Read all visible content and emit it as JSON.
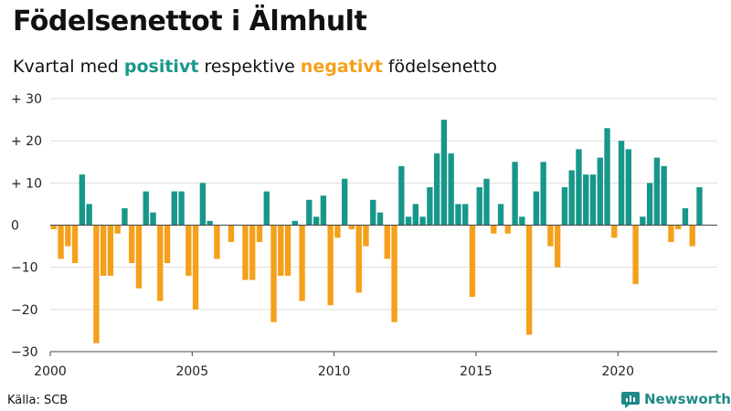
{
  "title": "Födelsenettot i Älmhult",
  "subtitle": {
    "prefix": "Kvartal med ",
    "positive": "positivt",
    "middle": " respektive ",
    "negative": "negativt",
    "suffix": " födelsenetto"
  },
  "source": "Källa: SCB",
  "logo": {
    "text": "Newsworthy",
    "icon": "bar-chart-icon"
  },
  "colors": {
    "positive": "#17978a",
    "negative": "#f5a01a",
    "grid": "#dddddd"
  },
  "chart_data": {
    "type": "bar",
    "xlabel": "",
    "ylabel": "",
    "ylim": [
      -30,
      30
    ],
    "xlim": [
      2000,
      2023.5
    ],
    "yticks": [
      {
        "value": 30,
        "label": "+ 30"
      },
      {
        "value": 20,
        "label": "+ 20"
      },
      {
        "value": 10,
        "label": "+ 10"
      },
      {
        "value": 0,
        "label": "0"
      },
      {
        "value": -10,
        "label": "−10"
      },
      {
        "value": -20,
        "label": "−20"
      },
      {
        "value": -30,
        "label": "−30"
      }
    ],
    "xticks": [
      {
        "value": 2000,
        "label": "2000"
      },
      {
        "value": 2005,
        "label": "2005"
      },
      {
        "value": 2010,
        "label": "2010"
      },
      {
        "value": 2015,
        "label": "2015"
      },
      {
        "value": 2020,
        "label": "2020"
      }
    ],
    "start_year": 2000,
    "values": [
      -1,
      -8,
      -5,
      -9,
      12,
      5,
      -28,
      -12,
      -12,
      -2,
      4,
      -9,
      -15,
      8,
      3,
      -18,
      -9,
      8,
      8,
      -12,
      -20,
      10,
      1,
      -8,
      0,
      -4,
      0,
      -13,
      -13,
      -4,
      8,
      -23,
      -12,
      -12,
      1,
      -18,
      6,
      2,
      7,
      -19,
      -3,
      11,
      -1,
      -16,
      -5,
      6,
      3,
      -8,
      -23,
      14,
      2,
      5,
      2,
      9,
      17,
      25,
      17,
      5,
      5,
      -17,
      9,
      11,
      -2,
      5,
      -2,
      15,
      2,
      -26,
      8,
      15,
      -5,
      -10,
      9,
      13,
      18,
      12,
      12,
      16,
      23,
      -3,
      20,
      18,
      -14,
      2,
      10,
      16,
      14,
      -4,
      -1,
      4,
      -5,
      9
    ]
  }
}
